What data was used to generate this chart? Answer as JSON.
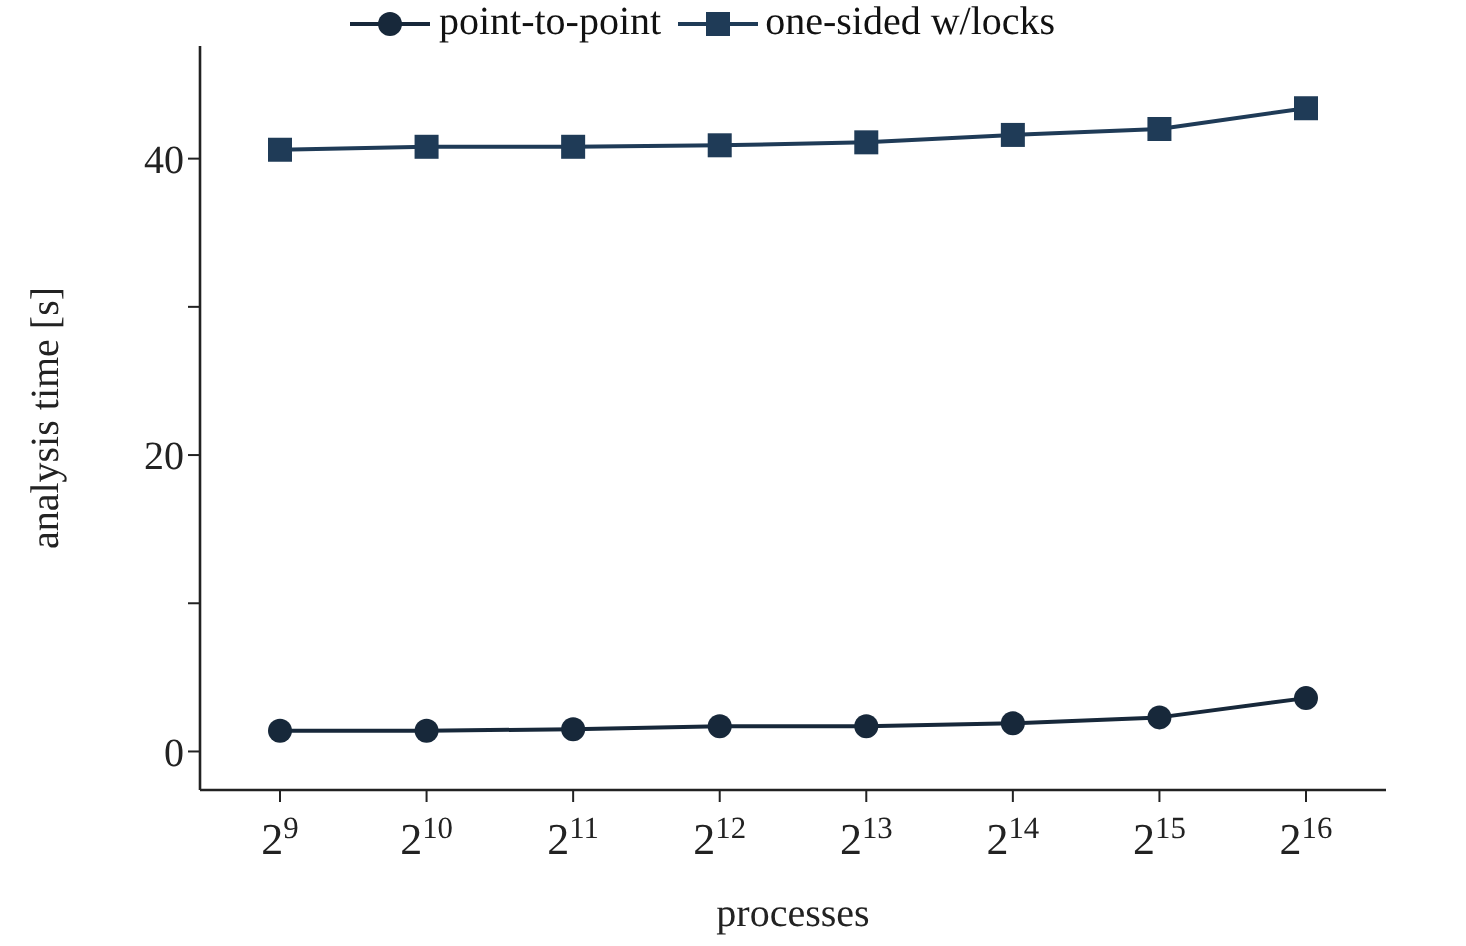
{
  "chart_data": {
    "type": "line",
    "xlabel": "processes",
    "ylabel": "analysis time [s]",
    "categories": [
      "2$^{9}$",
      "2$^{10}$",
      "2$^{11}$",
      "2$^{12}$",
      "2$^{13}$",
      "2$^{14}$",
      "2$^{15}$",
      "2$^{16}$"
    ],
    "series": [
      {
        "name": "point-to-point",
        "color": "#17283a",
        "marker": "circle",
        "values": [
          1.4,
          1.4,
          1.5,
          1.7,
          1.7,
          1.9,
          2.3,
          3.6
        ]
      },
      {
        "name": "one-sided w/locks",
        "color": "#1f3b57",
        "marker": "square",
        "values": [
          40.6,
          40.8,
          40.8,
          40.9,
          41.1,
          41.6,
          42.0,
          43.4
        ]
      }
    ],
    "ylim": [
      -2.6,
      47.6
    ],
    "yticks": [
      0,
      {
        "value": 10,
        "label": null
      },
      20,
      {
        "value": 30,
        "label": null
      },
      40
    ],
    "grid": false,
    "legend": "top",
    "line_style": "solid"
  }
}
